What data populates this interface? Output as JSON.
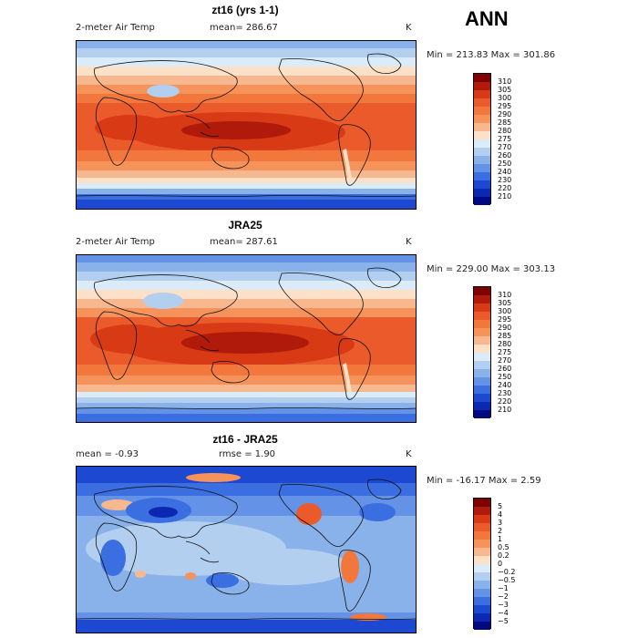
{
  "season": "ANN",
  "panels": [
    {
      "title": "zt16 (yrs 1-1)",
      "variable": "2-meter Air Temp",
      "stat1": "mean= 286.67",
      "stat2": "",
      "units": "K",
      "minmax": "Min = 213.83 Max = 301.86",
      "levels": [
        "310",
        "305",
        "300",
        "295",
        "290",
        "285",
        "280",
        "275",
        "270",
        "260",
        "250",
        "240",
        "230",
        "220",
        "210"
      ],
      "colors": [
        "#7f0000",
        "#b01a0a",
        "#d83a16",
        "#ea5a2a",
        "#f2773c",
        "#f5935a",
        "#f8b88f",
        "#fde0c8",
        "#dcebf8",
        "#b3cff0",
        "#8ab2ea",
        "#6392e6",
        "#3b6ee0",
        "#1d48d2",
        "#0a28b0",
        "#000a80"
      ]
    },
    {
      "title": "JRA25",
      "variable": "2-meter Air Temp",
      "stat1": "mean= 287.61",
      "stat2": "",
      "units": "K",
      "minmax": "Min = 229.00 Max = 303.13",
      "levels": [
        "310",
        "305",
        "300",
        "295",
        "290",
        "285",
        "280",
        "275",
        "270",
        "260",
        "250",
        "240",
        "230",
        "220",
        "210"
      ],
      "colors": [
        "#7f0000",
        "#b01a0a",
        "#d83a16",
        "#ea5a2a",
        "#f2773c",
        "#f5935a",
        "#f8b88f",
        "#fde0c8",
        "#dcebf8",
        "#b3cff0",
        "#8ab2ea",
        "#6392e6",
        "#3b6ee0",
        "#1d48d2",
        "#0a28b0",
        "#000a80"
      ]
    },
    {
      "title": "zt16 - JRA25",
      "variable": "",
      "stat1": "mean =   -0.93",
      "stat2": "rmse =   1.90",
      "units": "K",
      "minmax": "Min = -16.17 Max =   2.59",
      "levels": [
        "5",
        "4",
        "3",
        "2",
        "1",
        "0.5",
        "0.2",
        "0",
        "−0.2",
        "−0.5",
        "−1",
        "−2",
        "−3",
        "−4",
        "−5"
      ],
      "colors": [
        "#7f0000",
        "#b01a0a",
        "#d83a16",
        "#ea5a2a",
        "#f2773c",
        "#f5935a",
        "#f8b88f",
        "#fde0c8",
        "#dcebf8",
        "#b3cff0",
        "#8ab2ea",
        "#6392e6",
        "#3b6ee0",
        "#1d48d2",
        "#0a28b0",
        "#000a80"
      ]
    }
  ]
}
